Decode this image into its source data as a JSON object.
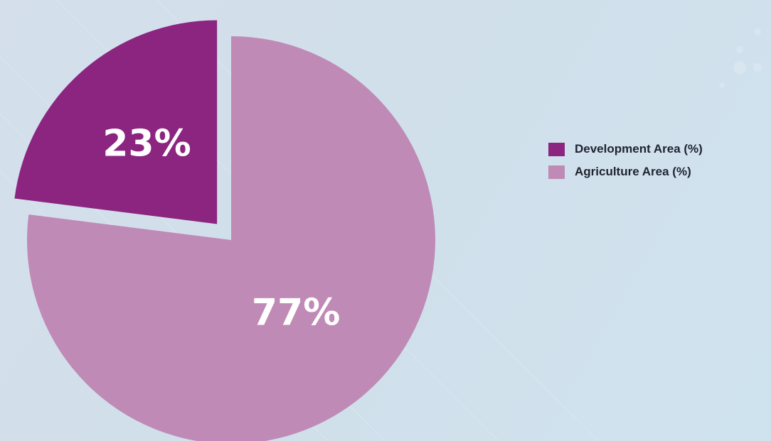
{
  "chart_data": {
    "type": "pie",
    "categories": [
      "Development Area (%)",
      "Agriculture Area (%)"
    ],
    "values": [
      23,
      77
    ],
    "data_labels": [
      "23%",
      "77%"
    ],
    "colors": [
      "#8b2580",
      "#c08ab6"
    ],
    "exploded": [
      true,
      false
    ],
    "legend_position": "right"
  }
}
